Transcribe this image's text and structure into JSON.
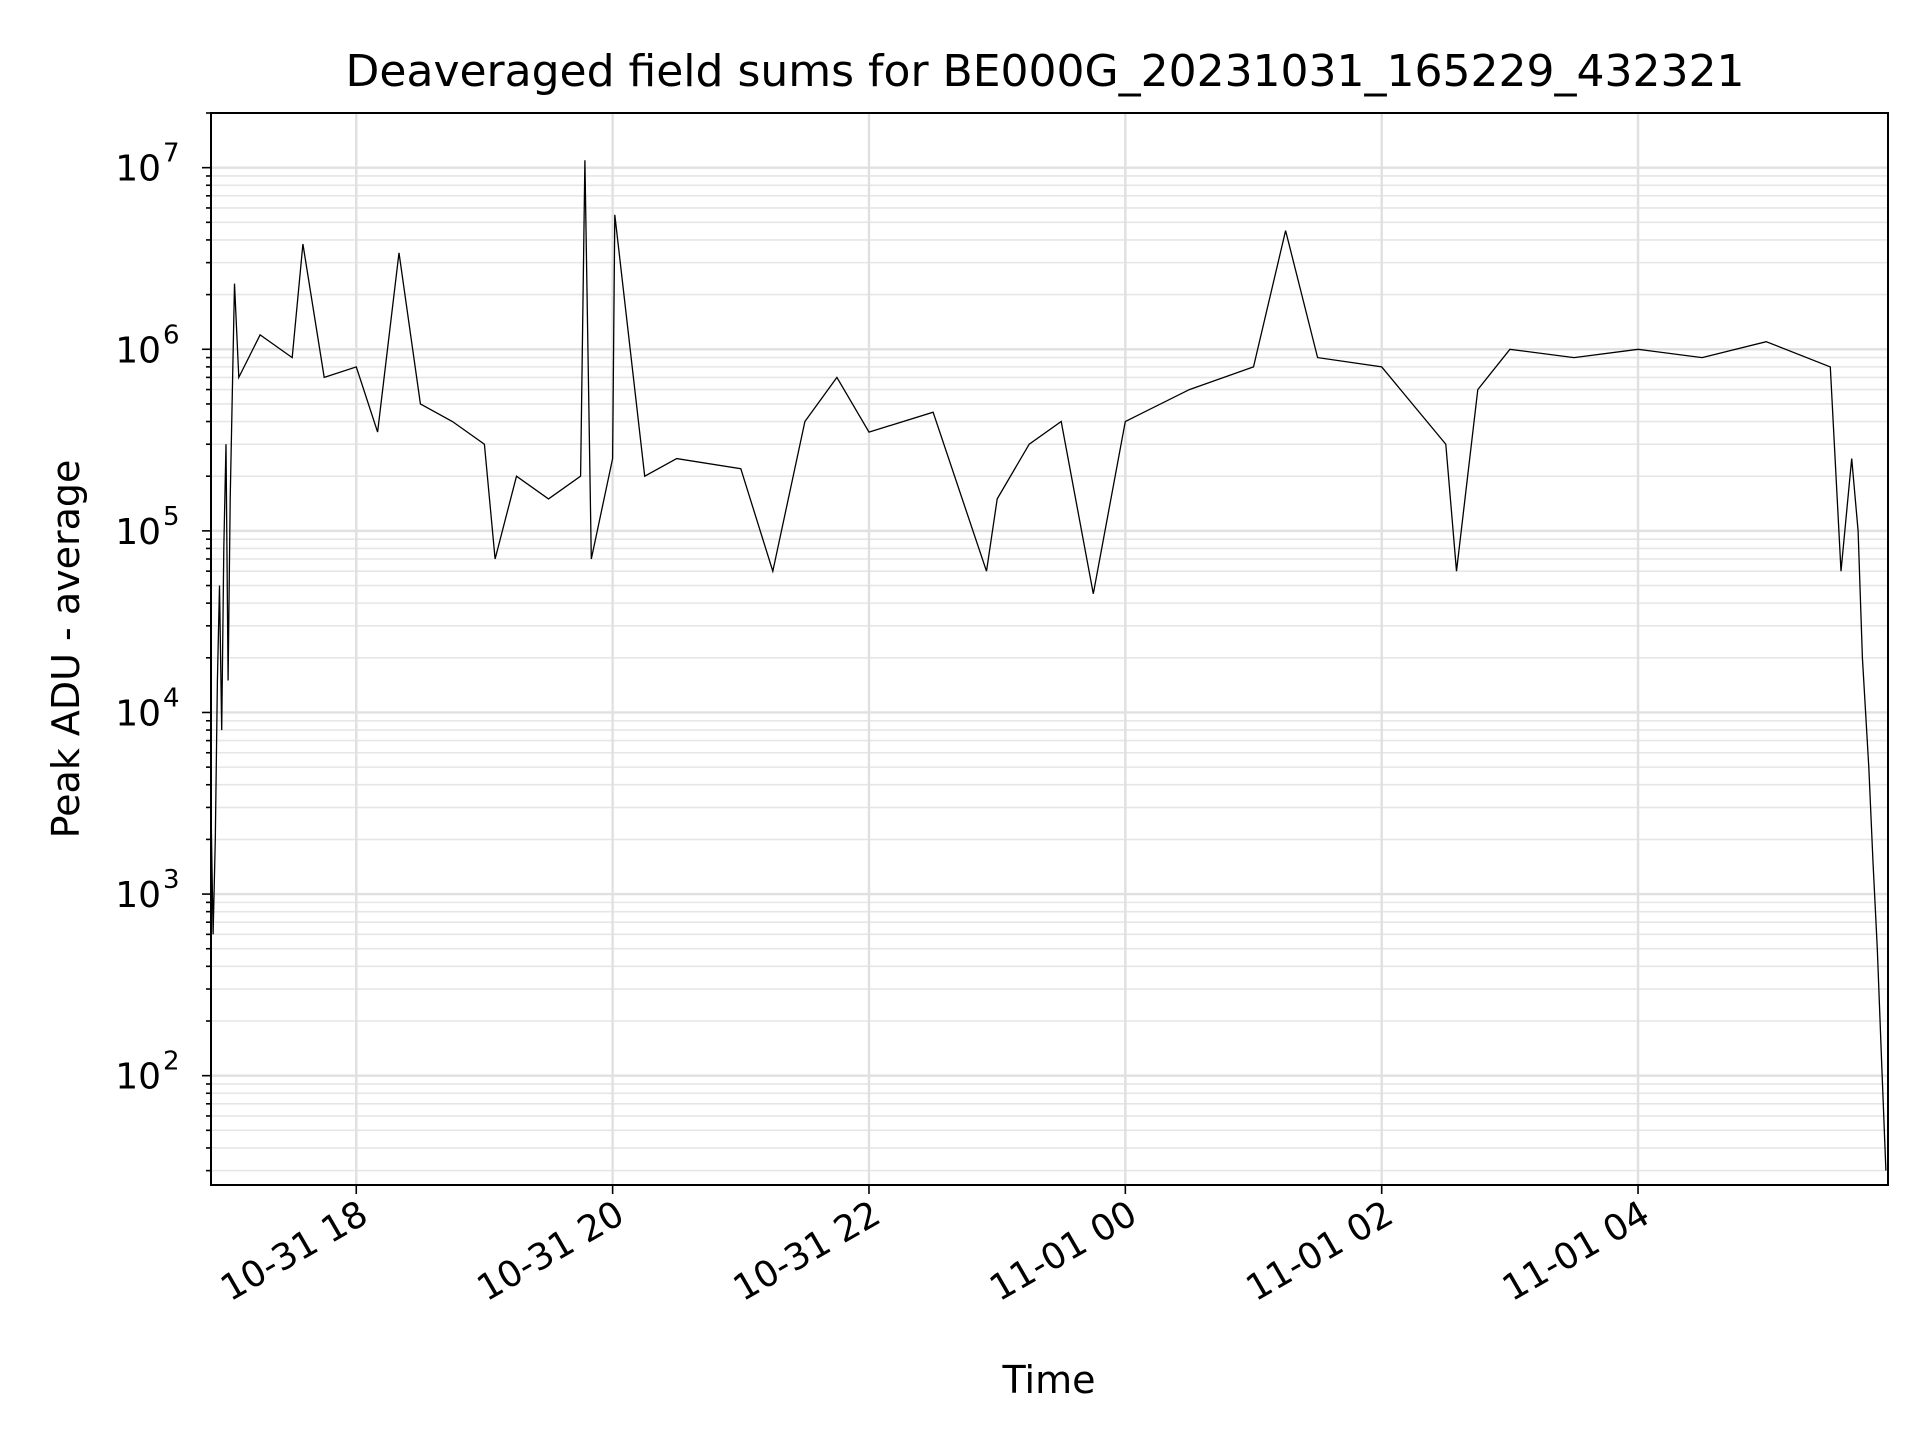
{
  "chart_data": {
    "type": "line",
    "title": "Deaveraged field sums for BE000G_20231031_165229_432321",
    "xlabel": "Time",
    "ylabel": "Peak ADU - average",
    "x_range": [
      "2023-10-31 16:52",
      "2023-11-01 05:57"
    ],
    "ylim": [
      25,
      20000000
    ],
    "y_scale": "log",
    "grid": "on (major and minor)",
    "legend": "none",
    "x_ticks": [
      {
        "time": "2023-10-31 18:00",
        "label": "10-31 18"
      },
      {
        "time": "2023-10-31 20:00",
        "label": "10-31 20"
      },
      {
        "time": "2023-10-31 22:00",
        "label": "10-31 22"
      },
      {
        "time": "2023-11-01 00:00",
        "label": "11-01 00"
      },
      {
        "time": "2023-11-01 02:00",
        "label": "11-01 02"
      },
      {
        "time": "2023-11-01 04:00",
        "label": "11-01 04"
      }
    ],
    "y_ticks": [
      {
        "value": 100,
        "base": "10",
        "exp": "2"
      },
      {
        "value": 1000,
        "base": "10",
        "exp": "3"
      },
      {
        "value": 10000,
        "base": "10",
        "exp": "4"
      },
      {
        "value": 100000,
        "base": "10",
        "exp": "5"
      },
      {
        "value": 1000000,
        "base": "10",
        "exp": "6"
      },
      {
        "value": 10000000,
        "base": "10",
        "exp": "7"
      }
    ],
    "series": [
      {
        "color": "#000000",
        "points": [
          [
            "2023-10-31 16:52",
            3000
          ],
          [
            "2023-10-31 16:53",
            600
          ],
          [
            "2023-10-31 16:54",
            2000
          ],
          [
            "2023-10-31 16:55",
            15000
          ],
          [
            "2023-10-31 16:56",
            50000
          ],
          [
            "2023-10-31 16:57",
            8000
          ],
          [
            "2023-10-31 16:58",
            80000
          ],
          [
            "2023-10-31 16:59",
            300000
          ],
          [
            "2023-10-31 17:00",
            15000
          ],
          [
            "2023-10-31 17:01",
            150000
          ],
          [
            "2023-10-31 17:03",
            2300000
          ],
          [
            "2023-10-31 17:05",
            700000
          ],
          [
            "2023-10-31 17:15",
            1200000
          ],
          [
            "2023-10-31 17:30",
            900000
          ],
          [
            "2023-10-31 17:35",
            3800000
          ],
          [
            "2023-10-31 17:45",
            700000
          ],
          [
            "2023-10-31 18:00",
            800000
          ],
          [
            "2023-10-31 18:10",
            350000
          ],
          [
            "2023-10-31 18:20",
            3400000
          ],
          [
            "2023-10-31 18:30",
            500000
          ],
          [
            "2023-10-31 18:45",
            400000
          ],
          [
            "2023-10-31 19:00",
            300000
          ],
          [
            "2023-10-31 19:05",
            70000
          ],
          [
            "2023-10-31 19:15",
            200000
          ],
          [
            "2023-10-31 19:30",
            150000
          ],
          [
            "2023-10-31 19:45",
            200000
          ],
          [
            "2023-10-31 19:47",
            11000000
          ],
          [
            "2023-10-31 19:50",
            70000
          ],
          [
            "2023-10-31 20:00",
            250000
          ],
          [
            "2023-10-31 20:01",
            5500000
          ],
          [
            "2023-10-31 20:15",
            200000
          ],
          [
            "2023-10-31 20:30",
            250000
          ],
          [
            "2023-10-31 21:00",
            220000
          ],
          [
            "2023-10-31 21:15",
            60000
          ],
          [
            "2023-10-31 21:30",
            400000
          ],
          [
            "2023-10-31 21:45",
            700000
          ],
          [
            "2023-10-31 22:00",
            350000
          ],
          [
            "2023-10-31 22:30",
            450000
          ],
          [
            "2023-10-31 22:55",
            60000
          ],
          [
            "2023-10-31 23:00",
            150000
          ],
          [
            "2023-10-31 23:15",
            300000
          ],
          [
            "2023-10-31 23:30",
            400000
          ],
          [
            "2023-10-31 23:45",
            45000
          ],
          [
            "2023-11-01 00:00",
            400000
          ],
          [
            "2023-11-01 00:30",
            600000
          ],
          [
            "2023-11-01 01:00",
            800000
          ],
          [
            "2023-11-01 01:15",
            4500000
          ],
          [
            "2023-11-01 01:30",
            900000
          ],
          [
            "2023-11-01 02:00",
            800000
          ],
          [
            "2023-11-01 02:30",
            300000
          ],
          [
            "2023-11-01 02:35",
            60000
          ],
          [
            "2023-11-01 02:45",
            600000
          ],
          [
            "2023-11-01 03:00",
            1000000
          ],
          [
            "2023-11-01 03:30",
            900000
          ],
          [
            "2023-11-01 04:00",
            1000000
          ],
          [
            "2023-11-01 04:30",
            900000
          ],
          [
            "2023-11-01 05:00",
            1100000
          ],
          [
            "2023-11-01 05:30",
            800000
          ],
          [
            "2023-11-01 05:35",
            60000
          ],
          [
            "2023-11-01 05:40",
            250000
          ],
          [
            "2023-11-01 05:43",
            100000
          ],
          [
            "2023-11-01 05:45",
            20000
          ],
          [
            "2023-11-01 05:48",
            5000
          ],
          [
            "2023-11-01 05:50",
            1500
          ],
          [
            "2023-11-01 05:52",
            500
          ],
          [
            "2023-11-01 05:54",
            120
          ],
          [
            "2023-11-01 05:56",
            30
          ]
        ]
      }
    ]
  }
}
